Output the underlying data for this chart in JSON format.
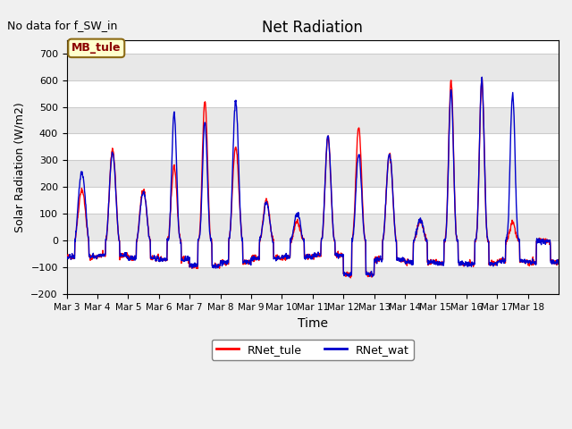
{
  "title": "Net Radiation",
  "xlabel": "Time",
  "ylabel": "Solar Radiation (W/m2)",
  "note": "No data for f_SW_in",
  "legend_label1": "RNet_tule",
  "legend_label2": "RNet_wat",
  "color1": "#ff0000",
  "color2": "#0000cc",
  "ylim": [
    -200,
    750
  ],
  "yticks": [
    -200,
    -100,
    0,
    100,
    200,
    300,
    400,
    500,
    600,
    700
  ],
  "bg_color": "#f0f0f0",
  "plot_bg_color": "#ffffff",
  "mb_tule_box_color": "#ffffcc",
  "mb_tule_text_color": "#8B0000",
  "xtick_labels": [
    "Mar 3",
    "Mar 4",
    "Mar 5",
    "Mar 6",
    "Mar 7",
    "Mar 8",
    "Mar 9",
    "Mar 10",
    "Mar 11",
    "Mar 12",
    "Mar 13",
    "Mar 14",
    "Mar 15",
    "Mar 16",
    "Mar 17",
    "Mar 18"
  ],
  "line_width": 1.0,
  "n_days": 16,
  "pts_per_day": 96
}
